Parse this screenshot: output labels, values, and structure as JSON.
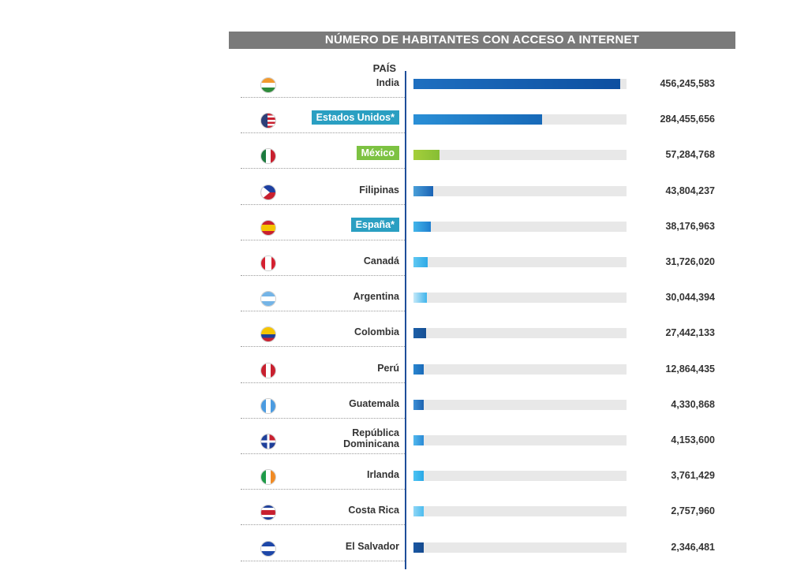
{
  "chart_data": {
    "type": "bar",
    "orientation": "horizontal",
    "title": "NÚMERO DE HABITANTES CON ACCESO A INTERNET",
    "category_header": "PAÍS",
    "xlim": [
      0,
      470000000
    ],
    "grid": false,
    "legend": "none",
    "rows": [
      {
        "country": "India",
        "value": 456245583,
        "display": "456,245,583",
        "flag": "flag-india-icon",
        "bar_color": [
          "#1e6fc0",
          "#0d4fa0"
        ]
      },
      {
        "country": "Estados Unidos*",
        "value": 284455656,
        "display": "284,455,656",
        "flag": "flag-usa-icon",
        "highlight": "#2a9fc2",
        "bar_color": [
          "#2a8fd6",
          "#1769b8"
        ]
      },
      {
        "country": "México",
        "value": 57284768,
        "display": "57,284,768",
        "flag": "flag-mexico-icon",
        "highlight": "#7dc242",
        "bar_color": [
          "#a5cf3b",
          "#86be34"
        ]
      },
      {
        "country": "Filipinas",
        "value": 43804237,
        "display": "43,804,237",
        "flag": "flag-philippines-icon",
        "bar_color": [
          "#4a9fd8",
          "#1a63b5"
        ]
      },
      {
        "country": "España*",
        "value": 38176963,
        "display": "38,176,963",
        "flag": "flag-spain-icon",
        "highlight": "#2a9fc2",
        "bar_color": [
          "#42b5ea",
          "#1f7fcf"
        ]
      },
      {
        "country": "Canadá",
        "value": 31726020,
        "display": "31,726,020",
        "flag": "flag-canada-icon",
        "bar_color": [
          "#5fc8f2",
          "#2ea9e6"
        ]
      },
      {
        "country": "Argentina",
        "value": 30044394,
        "display": "30,044,394",
        "flag": "flag-argentina-icon",
        "bar_color": [
          "#c5e9f8",
          "#3fb4ec"
        ]
      },
      {
        "country": "Colombia",
        "value": 27442133,
        "display": "27,442,133",
        "flag": "flag-colombia-icon",
        "bar_color": [
          "#1c5fa8",
          "#164f93"
        ]
      },
      {
        "country": "Perú",
        "value": 12864435,
        "display": "12,864,435",
        "flag": "flag-peru-icon",
        "bar_color": [
          "#2a86cf",
          "#1a6ab9"
        ]
      },
      {
        "country": "Guatemala",
        "value": 4330868,
        "display": "4,330,868",
        "flag": "flag-guatemala-icon",
        "bar_color": [
          "#3b8fd6",
          "#1c62b0"
        ]
      },
      {
        "country": "República Dominicana",
        "display_lines": [
          "República",
          "Dominicana"
        ],
        "value": 4153600,
        "display": "4,153,600",
        "flag": "flag-dominican-republic-icon",
        "bar_color": [
          "#52b8ee",
          "#2a8ad6"
        ]
      },
      {
        "country": "Irlanda",
        "value": 3761429,
        "display": "3,761,429",
        "flag": "flag-ireland-icon",
        "bar_color": [
          "#4cc3f3",
          "#2aa8e6"
        ]
      },
      {
        "country": "Costa Rica",
        "value": 2757960,
        "display": "2,757,960",
        "flag": "flag-costa-rica-icon",
        "bar_color": [
          "#8fd6f6",
          "#4cbcef"
        ]
      },
      {
        "country": "El Salvador",
        "value": 2346481,
        "display": "2,346,481",
        "flag": "flag-el-salvador-icon",
        "bar_color": [
          "#1a57a3",
          "#154a8e"
        ]
      }
    ]
  }
}
